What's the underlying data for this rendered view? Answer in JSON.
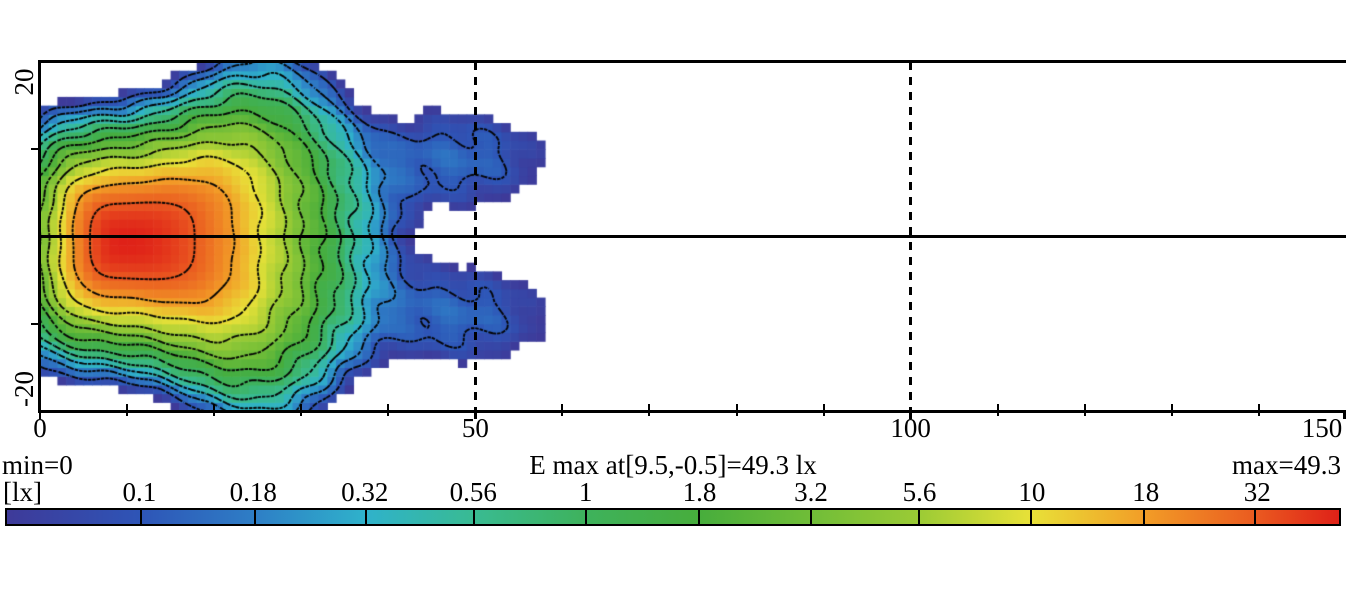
{
  "figure": {
    "annotations": {
      "min_label": "min=0",
      "title": "E max at[9.5,-0.5]=49.3 lx",
      "max_label": "max=49.3",
      "unit_label": "[lx]"
    },
    "axes": {
      "x": {
        "range": [
          0,
          150
        ],
        "major_ticks": [
          0,
          50,
          100,
          150
        ],
        "labels": [
          "0",
          "50",
          "100",
          "150"
        ],
        "minor_tick_step": 10
      },
      "y": {
        "range": [
          -20,
          20
        ],
        "major_ticks": [
          -20,
          20
        ],
        "labels": [
          "-20",
          "20"
        ],
        "minor_ticks": [
          -10,
          10
        ]
      }
    },
    "gridlines": {
      "vertical_dashed_x": [
        50,
        100
      ],
      "horizontal_solid_y": [
        0
      ]
    }
  },
  "chart_data": {
    "type": "heatmap",
    "title": "E max at[9.5,-0.5]=49.3 lx",
    "unit": "lx",
    "x_range": [
      0,
      150
    ],
    "y_range": [
      -20,
      20
    ],
    "min": 0,
    "max": 49.3,
    "peak": {
      "x": 9.5,
      "y": -0.5,
      "value": 49.3
    },
    "contour_levels": [
      0.1,
      0.18,
      0.32,
      0.56,
      1,
      1.8,
      3.2,
      5.6,
      10,
      18,
      32
    ],
    "colorbar_tick_labels": [
      "0.1",
      "0.18",
      "0.32",
      "0.56",
      "1",
      "1.8",
      "3.2",
      "5.6",
      "10",
      "18",
      "32"
    ],
    "display_threshold": 0.05,
    "color_stops": [
      {
        "value": 0.05,
        "color": "#3e3a99"
      },
      {
        "value": 0.1,
        "color": "#2e55b7"
      },
      {
        "value": 0.18,
        "color": "#2e7ec6"
      },
      {
        "value": 0.32,
        "color": "#2fb2cb"
      },
      {
        "value": 0.56,
        "color": "#39bb92"
      },
      {
        "value": 1,
        "color": "#3eb25c"
      },
      {
        "value": 1.8,
        "color": "#47ad3c"
      },
      {
        "value": 3.2,
        "color": "#70bd38"
      },
      {
        "value": 5.6,
        "color": "#9bcb35"
      },
      {
        "value": 10,
        "color": "#e8e138"
      },
      {
        "value": 18,
        "color": "#f29d27"
      },
      {
        "value": 32,
        "color": "#ea5a20"
      },
      {
        "value": 49.3,
        "color": "#df2118"
      }
    ],
    "cell_size": 1,
    "field_model": {
      "type": "anisotropic-log-gaussian",
      "decay": 6.894,
      "shape_exponent": 3.2,
      "extent_right": 33,
      "extent_left": 15,
      "extent_y_base": 16.5,
      "y_bulge": {
        "amp": 0.45,
        "center_x": 27,
        "width": 11
      },
      "side_lobes": {
        "amp": 0.13,
        "center_x": 48,
        "width_x": 10,
        "center_abs_y": 9,
        "width_y": 5.5
      },
      "ripple_amp": 0.22
    }
  }
}
